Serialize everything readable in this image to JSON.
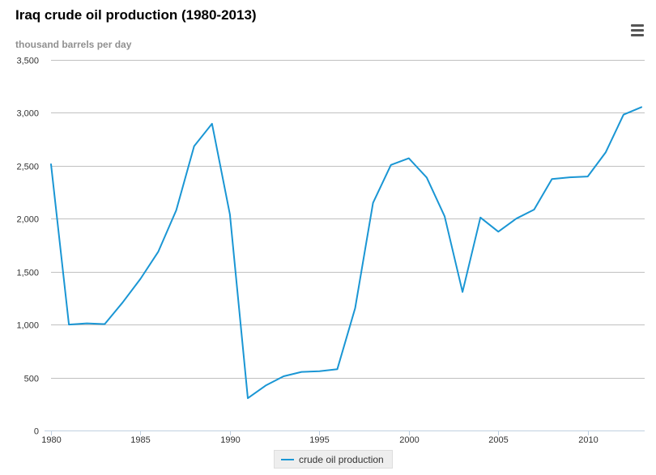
{
  "chart_data": {
    "type": "line",
    "title": "Iraq crude oil production (1980-2013)",
    "ylabel": "thousand barrels per day",
    "xlabel": "",
    "ylim": [
      0,
      3500
    ],
    "xlim": [
      1980,
      2013
    ],
    "yticks": [
      0,
      500,
      1000,
      1500,
      2000,
      2500,
      3000,
      3500
    ],
    "ytick_labels": [
      "0",
      "500",
      "1,000",
      "1,500",
      "2,000",
      "2,500",
      "3,000",
      "3,500"
    ],
    "xticks": [
      1980,
      1985,
      1990,
      1995,
      2000,
      2005,
      2010
    ],
    "xtick_labels": [
      "1980",
      "1985",
      "1990",
      "1995",
      "2000",
      "2005",
      "2010"
    ],
    "grid": true,
    "legend_position": "bottom-center",
    "series": [
      {
        "name": "crude oil production",
        "color": "#1a96d4",
        "x": [
          1980,
          1981,
          1982,
          1983,
          1984,
          1985,
          1986,
          1987,
          1988,
          1989,
          1990,
          1991,
          1992,
          1993,
          1994,
          1995,
          1996,
          1997,
          1998,
          1999,
          2000,
          2001,
          2002,
          2003,
          2004,
          2005,
          2006,
          2007,
          2008,
          2009,
          2010,
          2011,
          2012,
          2013
        ],
        "values": [
          2514,
          1000,
          1012,
          1005,
          1209,
          1433,
          1690,
          2079,
          2685,
          2897,
          2040,
          305,
          425,
          512,
          553,
          560,
          579,
          1155,
          2150,
          2508,
          2571,
          2389,
          2023,
          1308,
          2011,
          1878,
          2001,
          2086,
          2375,
          2391,
          2399,
          2626,
          2983,
          3054
        ]
      }
    ]
  },
  "menu": {
    "icon": "hamburger-menu-icon",
    "color": "#555555"
  }
}
